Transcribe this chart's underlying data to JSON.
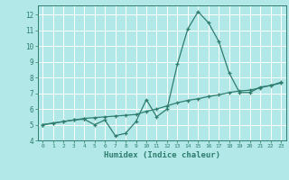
{
  "xlabel": "Humidex (Indice chaleur)",
  "background_color": "#b3e8e8",
  "grid_color": "#ffffff",
  "line_color": "#2e7d6e",
  "xlim": [
    -0.5,
    23.5
  ],
  "ylim": [
    4,
    12.6
  ],
  "yticks": [
    4,
    5,
    6,
    7,
    8,
    9,
    10,
    11,
    12
  ],
  "xticks": [
    0,
    1,
    2,
    3,
    4,
    5,
    6,
    7,
    8,
    9,
    10,
    11,
    12,
    13,
    14,
    15,
    16,
    17,
    18,
    19,
    20,
    21,
    22,
    23
  ],
  "line1_x": [
    0,
    1,
    2,
    3,
    4,
    5,
    6,
    7,
    8,
    9,
    10,
    11,
    12,
    13,
    14,
    15,
    16,
    17,
    18,
    19,
    20,
    21,
    22,
    23
  ],
  "line1_y": [
    5.0,
    5.1,
    5.2,
    5.3,
    5.35,
    5.0,
    5.3,
    4.3,
    4.45,
    5.2,
    6.6,
    5.5,
    6.0,
    8.85,
    11.1,
    12.2,
    11.5,
    10.3,
    8.3,
    7.05,
    7.05,
    7.4,
    7.5,
    7.7
  ],
  "line2_x": [
    0,
    1,
    2,
    3,
    4,
    5,
    6,
    7,
    8,
    9,
    10,
    11,
    12,
    13,
    14,
    15,
    16,
    17,
    18,
    19,
    20,
    21,
    22,
    23
  ],
  "line2_y": [
    5.0,
    5.1,
    5.2,
    5.3,
    5.4,
    5.45,
    5.5,
    5.55,
    5.6,
    5.65,
    5.85,
    6.0,
    6.2,
    6.4,
    6.55,
    6.65,
    6.8,
    6.9,
    7.05,
    7.15,
    7.2,
    7.35,
    7.5,
    7.65
  ]
}
